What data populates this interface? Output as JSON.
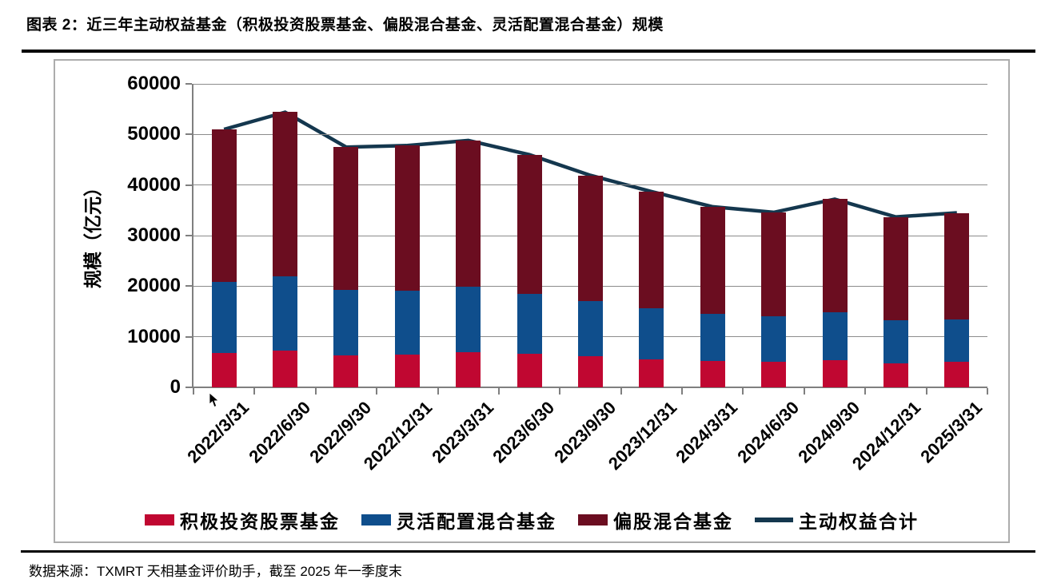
{
  "header": {
    "title": "图表 2：近三年主动权益基金（积极投资股票基金、偏股混合基金、灵活配置混合基金）规模"
  },
  "footer": {
    "source": "数据来源：TXMRT 天相基金评价助手，截至 2025 年一季度末"
  },
  "chart_data": {
    "type": "bar",
    "stacked": true,
    "title": "",
    "xlabel": "",
    "ylabel": "规模（亿元）",
    "ylim": [
      0,
      60000
    ],
    "yticks": [
      0,
      10000,
      20000,
      30000,
      40000,
      50000,
      60000
    ],
    "grid": true,
    "legend_position": "bottom",
    "categories": [
      "2022/3/31",
      "2022/6/30",
      "2022/9/30",
      "2022/12/31",
      "2023/3/31",
      "2023/6/30",
      "2023/9/30",
      "2023/12/31",
      "2024/3/31",
      "2024/6/30",
      "2024/9/30",
      "2024/12/31",
      "2025/3/31"
    ],
    "series": [
      {
        "name": "积极投资股票基金",
        "color": "#C00731",
        "values": [
          6800,
          7300,
          6300,
          6500,
          7000,
          6600,
          6100,
          5600,
          5200,
          5000,
          5300,
          4800,
          5100
        ]
      },
      {
        "name": "灵活配置混合基金",
        "color": "#0F4E8C",
        "values": [
          14100,
          14600,
          12900,
          12600,
          12900,
          11900,
          10900,
          10100,
          9300,
          9000,
          9500,
          8500,
          8400
        ]
      },
      {
        "name": "偏股混合基金",
        "color": "#6B0D20",
        "values": [
          30100,
          32500,
          28300,
          28700,
          28900,
          27500,
          24900,
          23000,
          21200,
          20600,
          22400,
          20400,
          21000
        ]
      }
    ],
    "line_series": {
      "name": "主动权益合计",
      "color": "#14374E",
      "values": [
        51000,
        54400,
        47500,
        47800,
        48800,
        46000,
        41900,
        38700,
        35700,
        34600,
        37200,
        33700,
        34500
      ]
    },
    "axis_color": "#7F7F7F",
    "gridline_color": "#8C8C8C"
  }
}
